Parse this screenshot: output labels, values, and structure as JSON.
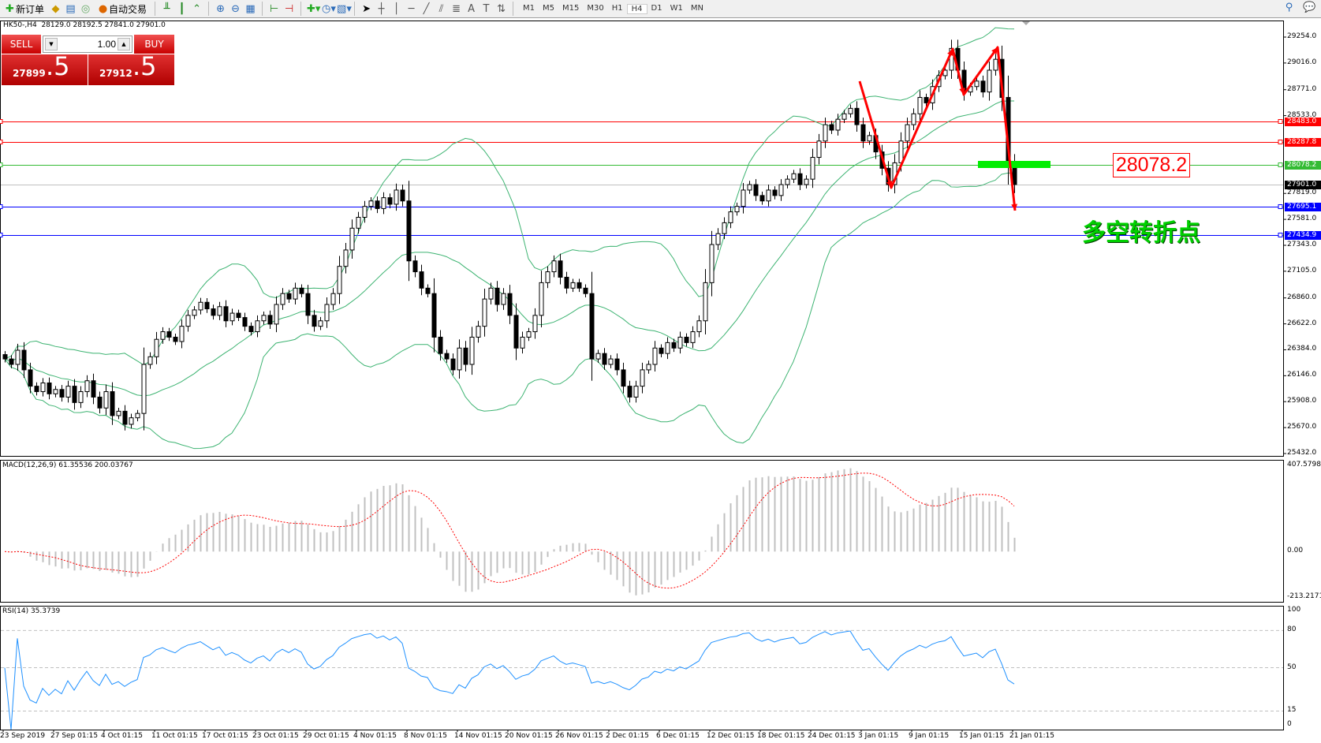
{
  "toolbar": {
    "new_order": "新订单",
    "auto_trading": "自动交易",
    "timeframes": [
      "M1",
      "M5",
      "M15",
      "M30",
      "H1",
      "H4",
      "D1",
      "W1",
      "MN"
    ],
    "active_timeframe": "H4",
    "icons": [
      "new-order-icon",
      "market-watch-icon",
      "data-window-icon",
      "navigator-icon",
      "auto-trading-icon",
      "bar-chart-icon",
      "candlestick-icon",
      "line-chart-icon",
      "zoom-in-icon",
      "zoom-out-icon",
      "tile-windows-icon",
      "autoscroll-icon",
      "chart-shift-icon",
      "indicators-icon",
      "periods-icon",
      "templates-icon",
      "cursor-icon",
      "crosshair-icon",
      "vertical-line-icon",
      "horizontal-line-icon",
      "trendline-icon",
      "equidistant-channel-icon",
      "fibonacci-icon",
      "text-icon",
      "text-label-icon",
      "arrows-icon",
      "search-icon",
      "chat-icon"
    ]
  },
  "chart": {
    "header": "HK50-,H4  28129.0 28192.5 27841.0 27901.0"
  },
  "trade_panel": {
    "sell_label": "SELL",
    "buy_label": "BUY",
    "lot": "1.00",
    "sell_price_main": "27899",
    "sell_price_big": ".5",
    "buy_price_main": "27912",
    "buy_price_big": ".5"
  },
  "annotations": {
    "price_box": "28078.2",
    "pivot_text": "多空转折点"
  },
  "colors": {
    "bull": "#ffffff",
    "bear": "#000000",
    "bands": "#3cb371",
    "macd_hist": "#c0c0c0",
    "macd_signal": "#ff0000",
    "rsi": "#1e90ff",
    "arrow": "#ff0000",
    "zone": "#00ee00"
  },
  "chart_data": {
    "type": "candlestick",
    "symbol": "HK50-",
    "timeframe": "H4",
    "price_ticks": [
      "29254.0",
      "29016.0",
      "28771.0",
      "28533.0",
      "27819.0",
      "27581.0",
      "27343.0",
      "27105.0",
      "26860.0",
      "26622.0",
      "26384.0",
      "26146.0",
      "25908.0",
      "25670.0",
      "25432.0"
    ],
    "ylim": [
      25432,
      29254
    ],
    "date_labels": [
      "23 Sep 2019",
      "27 Sep 01:15",
      "4 Oct 01:15",
      "11 Oct 01:15",
      "17 Oct 01:15",
      "23 Oct 01:15",
      "29 Oct 01:15",
      "4 Nov 01:15",
      "8 Nov 01:15",
      "14 Nov 01:15",
      "20 Nov 01:15",
      "26 Nov 01:15",
      "2 Dec 01:15",
      "6 Dec 01:15",
      "12 Dec 01:15",
      "18 Dec 01:15",
      "24 Dec 01:15",
      "3 Jan 01:15",
      "9 Jan 01:15",
      "15 Jan 01:15",
      "21 Jan 01:15"
    ],
    "close": [
      26300,
      26250,
      26380,
      26200,
      26050,
      26000,
      26080,
      25980,
      26020,
      25950,
      26050,
      25900,
      26000,
      26100,
      25950,
      25850,
      26000,
      25780,
      25820,
      25700,
      25760,
      25800,
      26250,
      26320,
      26480,
      26550,
      26500,
      26460,
      26600,
      26700,
      26750,
      26820,
      26760,
      26700,
      26780,
      26650,
      26720,
      26680,
      26600,
      26550,
      26650,
      26700,
      26620,
      26800,
      26900,
      26850,
      26950,
      26900,
      26700,
      26600,
      26650,
      26800,
      26900,
      27150,
      27300,
      27500,
      27600,
      27700,
      27750,
      27680,
      27780,
      27720,
      27850,
      27750,
      27200,
      27100,
      26950,
      26900,
      26500,
      26350,
      26300,
      26200,
      26400,
      26250,
      26500,
      26600,
      26850,
      26950,
      26800,
      26900,
      26700,
      26400,
      26500,
      26550,
      26700,
      27000,
      27100,
      27200,
      27050,
      26950,
      27000,
      26950,
      26900,
      26300,
      26350,
      26250,
      26300,
      26200,
      26050,
      25950,
      26050,
      26200,
      26250,
      26400,
      26350,
      26450,
      26400,
      26500,
      26450,
      26550,
      26650,
      27000,
      27350,
      27450,
      27550,
      27650,
      27700,
      27850,
      27900,
      27800,
      27750,
      27850,
      27800,
      27900,
      27950,
      28000,
      27900,
      27950,
      28150,
      28300,
      28450,
      28400,
      28500,
      28550,
      28600,
      28450,
      28300,
      28350,
      28200,
      28050,
      27900,
      28100,
      28300,
      28450,
      28550,
      28700,
      28650,
      28800,
      28900,
      28950,
      29150,
      28950,
      28750,
      28800,
      28850,
      28750,
      28950,
      29050,
      28700,
      28100,
      27901
    ],
    "levels": [
      {
        "price": 28483.0,
        "label": "28483.0",
        "color": "#ff0000"
      },
      {
        "price": 28287.8,
        "label": "28287.8",
        "color": "#ff0000"
      },
      {
        "price": 28078.2,
        "label": "28078.2",
        "color": "#33bb33"
      },
      {
        "price": 27901.0,
        "label": "27901.0",
        "color": "#000000",
        "line": "#c0c0c0"
      },
      {
        "price": 27695.1,
        "label": "27695.1",
        "color": "#0000ff"
      },
      {
        "price": 27434.9,
        "label": "27434.9",
        "color": "#0000ff"
      }
    ],
    "indicators": {
      "bollinger": {
        "period": 20,
        "deviation": 2
      },
      "macd": {
        "label": "MACD(12,26,9) 61.35536 200.03767",
        "ylim": [
          -213.2171,
          407.57984
        ],
        "ticks": [
          "407.57984",
          "0.00",
          "-213.2171"
        ]
      },
      "rsi": {
        "label": "RSI(14) 35.3739",
        "ticks": [
          "100",
          "80",
          "50",
          "15",
          "0"
        ],
        "levels": [
          80,
          50,
          15
        ]
      }
    }
  }
}
